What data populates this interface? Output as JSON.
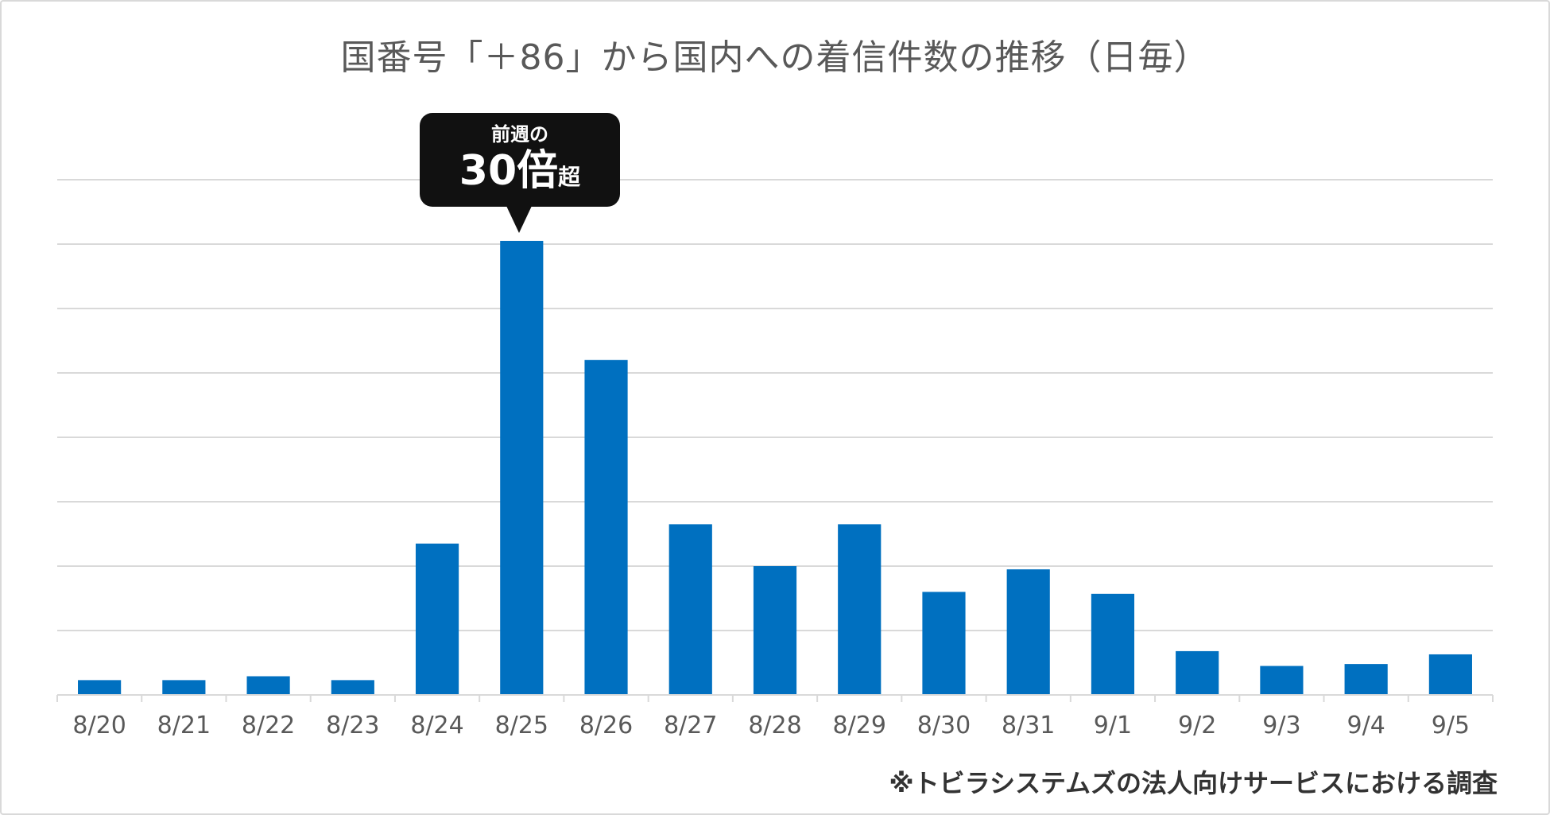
{
  "chart_data": {
    "type": "bar",
    "title": "国番号「＋86」から国内への着信件数の推移（日毎）",
    "categories": [
      "8/20",
      "8/21",
      "8/22",
      "8/23",
      "8/24",
      "8/25",
      "8/26",
      "8/27",
      "8/28",
      "8/29",
      "8/30",
      "8/31",
      "9/1",
      "9/2",
      "9/3",
      "9/4",
      "9/5"
    ],
    "values": [
      0.23,
      0.23,
      0.29,
      0.23,
      2.35,
      7.05,
      5.2,
      2.65,
      2.0,
      2.65,
      1.6,
      1.95,
      1.57,
      0.68,
      0.45,
      0.48,
      0.63
    ],
    "ylim": [
      0,
      8
    ],
    "y_gridlines": 8,
    "grid": true,
    "legend": "none",
    "xlabel": "",
    "ylabel": "",
    "bar_color": "#0070C0"
  },
  "annotation": {
    "target_category": "8/25",
    "line1": "前週の",
    "big": "30倍",
    "small": "超"
  },
  "footnote": "※トビラシステムズの法人向けサービスにおける調査"
}
